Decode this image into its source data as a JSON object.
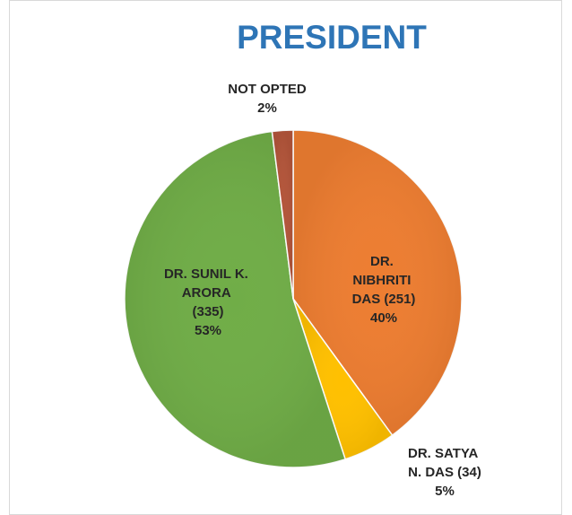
{
  "chart_data": {
    "type": "pie",
    "title": "PRESIDENT",
    "categories": [
      "DR. NIBHRITI DAS (251)",
      "DR. SATYA N. DAS (34)",
      "DR. SUNIL K. ARORA (335)",
      "NOT OPTED"
    ],
    "values": [
      40,
      5,
      53,
      2
    ],
    "value_labels": [
      "40%",
      "5%",
      "53%",
      "2%"
    ],
    "colors": [
      "#ED7D31",
      "#FFC000",
      "#70AD47",
      "#B3553A"
    ]
  }
}
